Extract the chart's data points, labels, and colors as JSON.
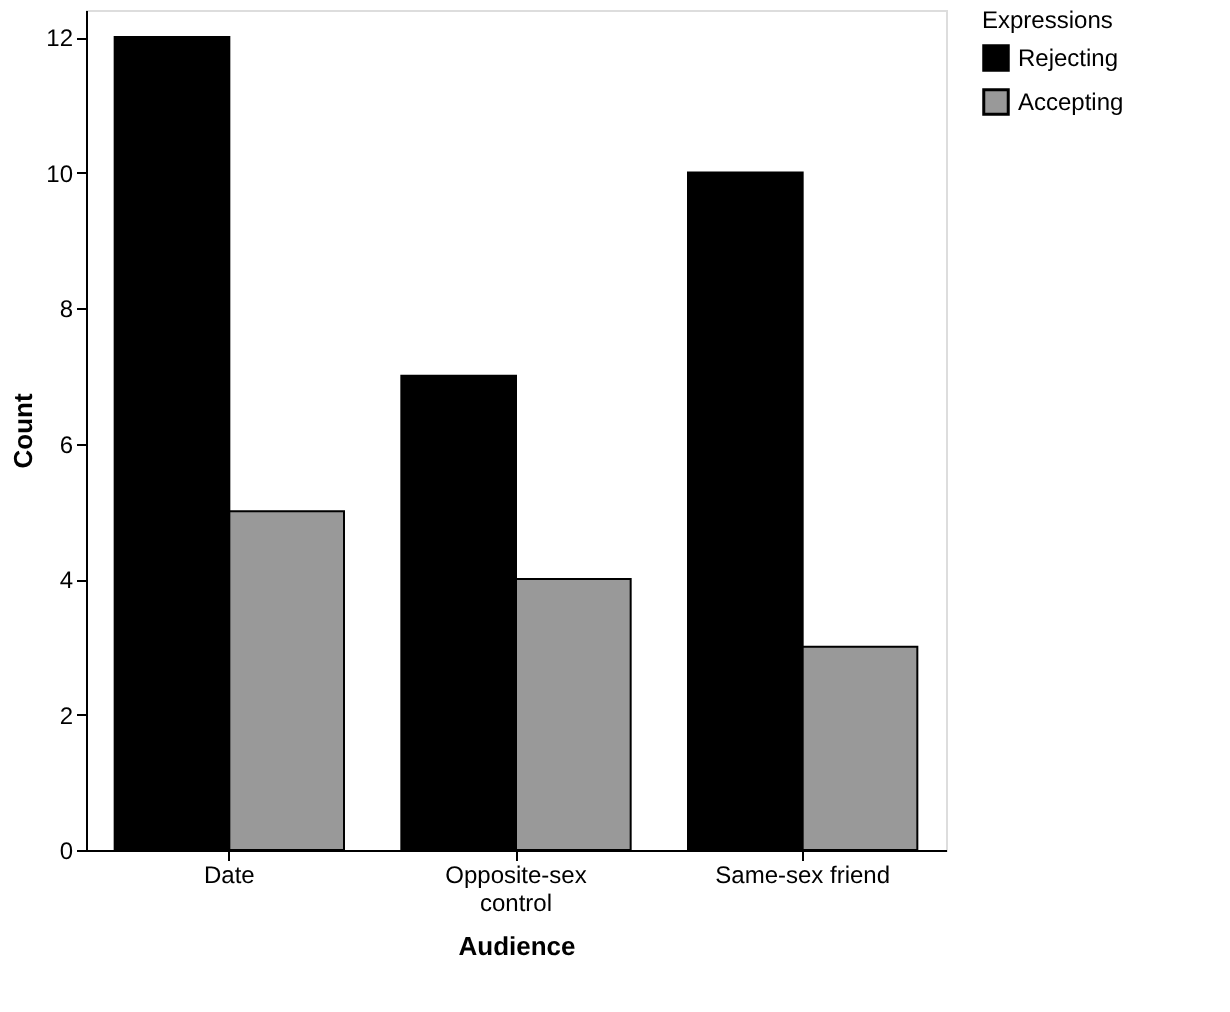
{
  "chart_data": {
    "type": "bar",
    "xlabel": "Audience",
    "ylabel": "Count",
    "legend_title": "Expressions",
    "legend": "top right",
    "grid": false,
    "categories": [
      "Date",
      "Opposite-sex control",
      "Same-sex friend"
    ],
    "series": [
      {
        "name": "Rejecting",
        "color": "#000000",
        "values": [
          12,
          7,
          10
        ]
      },
      {
        "name": "Accepting",
        "color": "#999999",
        "values": [
          5,
          4,
          3
        ]
      }
    ],
    "ylim": [
      0,
      12.4
    ],
    "yticks": [
      0,
      2,
      4,
      6,
      8,
      10,
      12
    ]
  }
}
